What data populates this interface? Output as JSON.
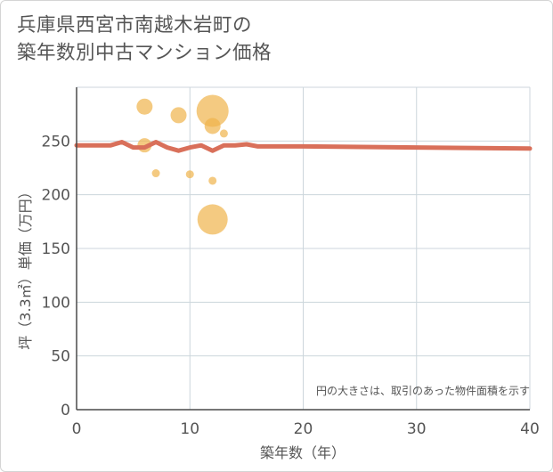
{
  "title_line1": "兵庫県西宮市南越木岩町の",
  "title_line2": "築年数別中古マンション価格",
  "chart_data": {
    "type": "scatter",
    "xlabel": "築年数（年）",
    "ylabel": "坪（3.3㎡）単価（万円）",
    "xlim": [
      0,
      40
    ],
    "ylim": [
      0,
      300
    ],
    "x_ticks": [
      "0",
      "10",
      "20",
      "30",
      "40"
    ],
    "y_ticks": [
      "0",
      "50",
      "100",
      "150",
      "200",
      "250"
    ],
    "grid": true,
    "annotation": "円の大きさは、取引のあった物件面積を示す",
    "colors": {
      "points": "#f0b44c",
      "line": "#d9705a",
      "grid": "#ccd6dc",
      "axis": "#4a4a4a"
    },
    "points": [
      {
        "x": 6,
        "y": 282,
        "size": 18
      },
      {
        "x": 6,
        "y": 246,
        "size": 16
      },
      {
        "x": 7,
        "y": 220,
        "size": 9
      },
      {
        "x": 9,
        "y": 274,
        "size": 18
      },
      {
        "x": 10,
        "y": 219,
        "size": 9
      },
      {
        "x": 12,
        "y": 278,
        "size": 36
      },
      {
        "x": 12,
        "y": 264,
        "size": 18
      },
      {
        "x": 12,
        "y": 213,
        "size": 9
      },
      {
        "x": 12,
        "y": 177,
        "size": 34
      },
      {
        "x": 13,
        "y": 257,
        "size": 9
      }
    ],
    "trend": [
      {
        "x": 0,
        "y": 246
      },
      {
        "x": 3,
        "y": 246
      },
      {
        "x": 4,
        "y": 249
      },
      {
        "x": 5,
        "y": 244
      },
      {
        "x": 6,
        "y": 244
      },
      {
        "x": 7,
        "y": 249
      },
      {
        "x": 8,
        "y": 244
      },
      {
        "x": 9,
        "y": 241
      },
      {
        "x": 10,
        "y": 244
      },
      {
        "x": 11,
        "y": 246
      },
      {
        "x": 12,
        "y": 241
      },
      {
        "x": 13,
        "y": 246
      },
      {
        "x": 14,
        "y": 246
      },
      {
        "x": 15,
        "y": 247
      },
      {
        "x": 16,
        "y": 245
      },
      {
        "x": 20,
        "y": 245
      },
      {
        "x": 30,
        "y": 244
      },
      {
        "x": 40,
        "y": 243
      }
    ]
  }
}
